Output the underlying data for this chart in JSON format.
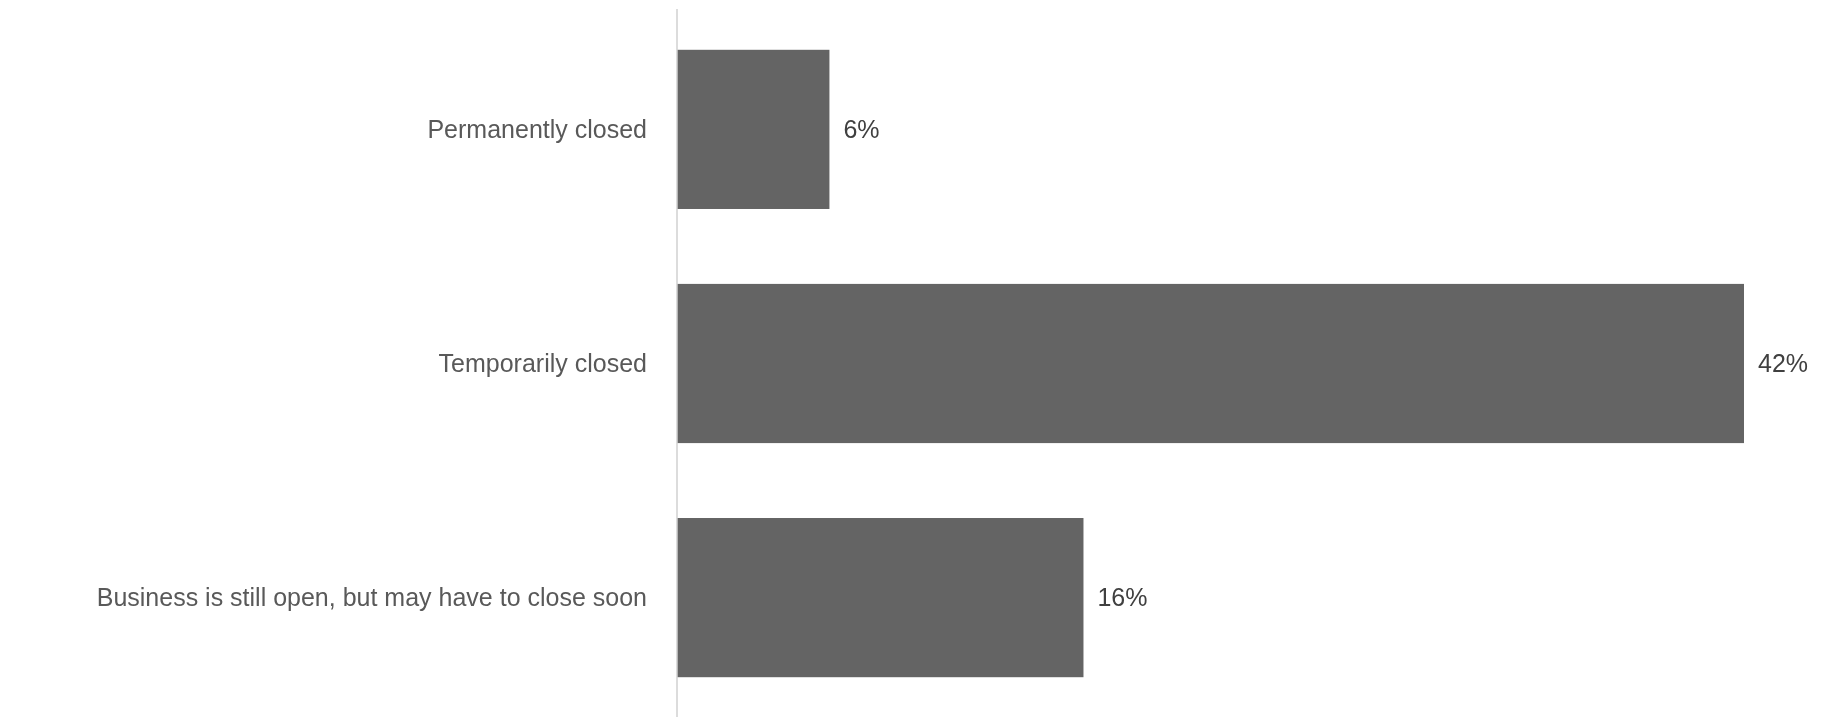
{
  "chart_data": {
    "type": "bar",
    "orientation": "horizontal",
    "categories": [
      "Permanently closed",
      "Temporarily closed",
      "Business is still open, but may have to close soon"
    ],
    "values": [
      6,
      42,
      16
    ],
    "color": "#646464",
    "value_labels": [
      "6%",
      "42%",
      "16%"
    ]
  }
}
